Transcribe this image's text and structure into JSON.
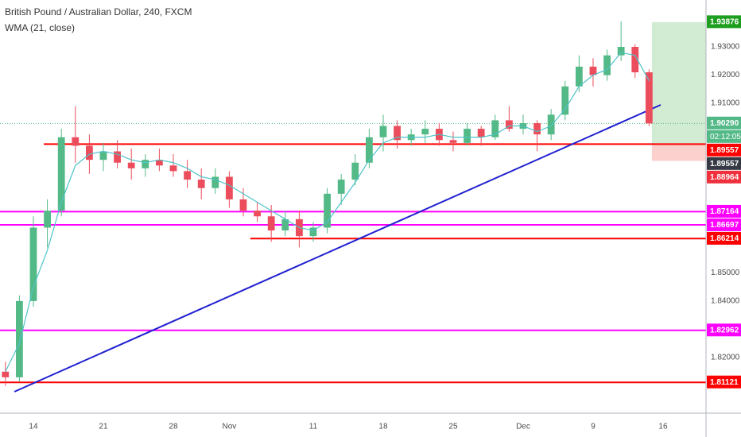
{
  "chart_data": {
    "type": "candlestick",
    "title": "British Pound / Australian Dollar, 240, FXCM",
    "subtitle": "WMA (21, close)",
    "xlim": [
      -2.386,
      48.07
    ],
    "ylim": [
      1.8003,
      1.9466
    ],
    "xticks": [
      {
        "value": 0,
        "label": "14"
      },
      {
        "value": 5,
        "label": "21"
      },
      {
        "value": 10,
        "label": "28"
      },
      {
        "value": 14,
        "label": "Nov"
      },
      {
        "value": 20,
        "label": "11"
      },
      {
        "value": 25,
        "label": "18"
      },
      {
        "value": 30,
        "label": "25"
      },
      {
        "value": 35,
        "label": "Dec"
      },
      {
        "value": 40,
        "label": "9"
      },
      {
        "value": 45,
        "label": "16"
      }
    ],
    "yticks": [
      {
        "value": 1.93,
        "label": "1.93000"
      },
      {
        "value": 1.92,
        "label": "1.92000"
      },
      {
        "value": 1.91,
        "label": "1.91000"
      },
      {
        "value": 1.85,
        "label": "1.85000"
      },
      {
        "value": 1.84,
        "label": "1.84000"
      },
      {
        "value": 1.82,
        "label": "1.82000"
      }
    ],
    "up_color": "#53b987",
    "down_color": "#eb4d5c",
    "candles": {
      "x": [
        -2,
        -1,
        0,
        1,
        2,
        3,
        4,
        5,
        6,
        7,
        8,
        9,
        10,
        11,
        12,
        13,
        14,
        15,
        16,
        17,
        18,
        19,
        20,
        21,
        22,
        23,
        24,
        25,
        26,
        27,
        28,
        29,
        30,
        31,
        32,
        33,
        34,
        35,
        36,
        37,
        38,
        39,
        40,
        41,
        42,
        43,
        44
      ],
      "open": [
        1.815,
        1.813,
        1.84,
        1.866,
        1.872,
        1.898,
        1.895,
        1.89,
        1.893,
        1.889,
        1.887,
        1.89,
        1.888,
        1.886,
        1.883,
        1.88,
        1.884,
        1.876,
        1.872,
        1.87,
        1.865,
        1.869,
        1.863,
        1.866,
        1.878,
        1.883,
        1.889,
        1.898,
        1.902,
        1.897,
        1.899,
        1.901,
        1.897,
        1.896,
        1.901,
        1.898,
        1.904,
        1.901,
        1.903,
        1.899,
        1.906,
        1.916,
        1.923,
        1.92,
        1.927,
        1.93,
        1.921
      ],
      "high": [
        1.8185,
        1.842,
        1.87,
        1.876,
        1.901,
        1.909,
        1.899,
        1.896,
        1.897,
        1.894,
        1.892,
        1.894,
        1.892,
        1.89,
        1.887,
        1.887,
        1.886,
        1.88,
        1.875,
        1.874,
        1.872,
        1.872,
        1.868,
        1.88,
        1.885,
        1.892,
        1.901,
        1.906,
        1.904,
        1.901,
        1.904,
        1.903,
        1.9,
        1.903,
        1.902,
        1.906,
        1.909,
        1.906,
        1.904,
        1.908,
        1.918,
        1.927,
        1.926,
        1.929,
        1.939,
        1.931,
        1.922
      ],
      "low": [
        1.81,
        1.8115,
        1.838,
        1.859,
        1.87,
        1.889,
        1.885,
        1.886,
        1.887,
        1.883,
        1.884,
        1.886,
        1.884,
        1.88,
        1.876,
        1.878,
        1.873,
        1.87,
        1.868,
        1.861,
        1.863,
        1.859,
        1.861,
        1.864,
        1.874,
        1.881,
        1.887,
        1.893,
        1.894,
        1.895,
        1.896,
        1.895,
        1.893,
        1.895,
        1.895,
        1.897,
        1.9,
        1.899,
        1.893,
        1.897,
        1.904,
        1.914,
        1.916,
        1.918,
        1.925,
        1.919,
        1.902
      ],
      "close": [
        1.813,
        1.84,
        1.866,
        1.872,
        1.898,
        1.895,
        1.89,
        1.893,
        1.889,
        1.887,
        1.89,
        1.888,
        1.886,
        1.883,
        1.88,
        1.884,
        1.876,
        1.872,
        1.87,
        1.865,
        1.869,
        1.863,
        1.866,
        1.878,
        1.883,
        1.889,
        1.898,
        1.902,
        1.897,
        1.899,
        1.901,
        1.897,
        1.896,
        1.901,
        1.898,
        1.904,
        1.901,
        1.903,
        1.899,
        1.906,
        1.916,
        1.923,
        1.92,
        1.927,
        1.93,
        1.921,
        1.9029
      ]
    },
    "wma": {
      "color": "#4fc3c8",
      "values": [
        1.815,
        1.825,
        1.845,
        1.858,
        1.875,
        1.888,
        1.892,
        1.893,
        1.892,
        1.89,
        1.889,
        1.89,
        1.889,
        1.887,
        1.884,
        1.883,
        1.881,
        1.878,
        1.875,
        1.872,
        1.869,
        1.866,
        1.865,
        1.868,
        1.875,
        1.882,
        1.89,
        1.896,
        1.898,
        1.898,
        1.898,
        1.899,
        1.898,
        1.898,
        1.898,
        1.899,
        1.902,
        1.902,
        1.9,
        1.902,
        1.908,
        1.916,
        1.92,
        1.922,
        1.928,
        1.927,
        1.918
      ]
    },
    "hlines": [
      {
        "value": 1.89557,
        "color": "#ff0000",
        "start": 0.74
      },
      {
        "value": 1.87164,
        "color": "#ff00ff"
      },
      {
        "value": 1.86697,
        "color": "#ff00ff"
      },
      {
        "value": 1.86214,
        "color": "#ff0000",
        "start": 15.5
      },
      {
        "value": 1.82962,
        "color": "#ff00ff"
      },
      {
        "value": 1.81121,
        "color": "#ff0000"
      }
    ],
    "trendline": {
      "color": "#2020d0",
      "x": [
        -1.36,
        44.83
      ],
      "y": [
        1.8079,
        1.90946
      ]
    },
    "current_price": {
      "value": 1.9029,
      "label": "1.90290",
      "color": "#53b987",
      "countdown": "02:12:05"
    },
    "position": {
      "start": 44.2,
      "entry": 1.89557,
      "target": 1.93876,
      "stop": 1.88964,
      "entry_color": "#363a45",
      "target_color": "#1e9e1e",
      "stop_color": "#f0303c"
    }
  }
}
